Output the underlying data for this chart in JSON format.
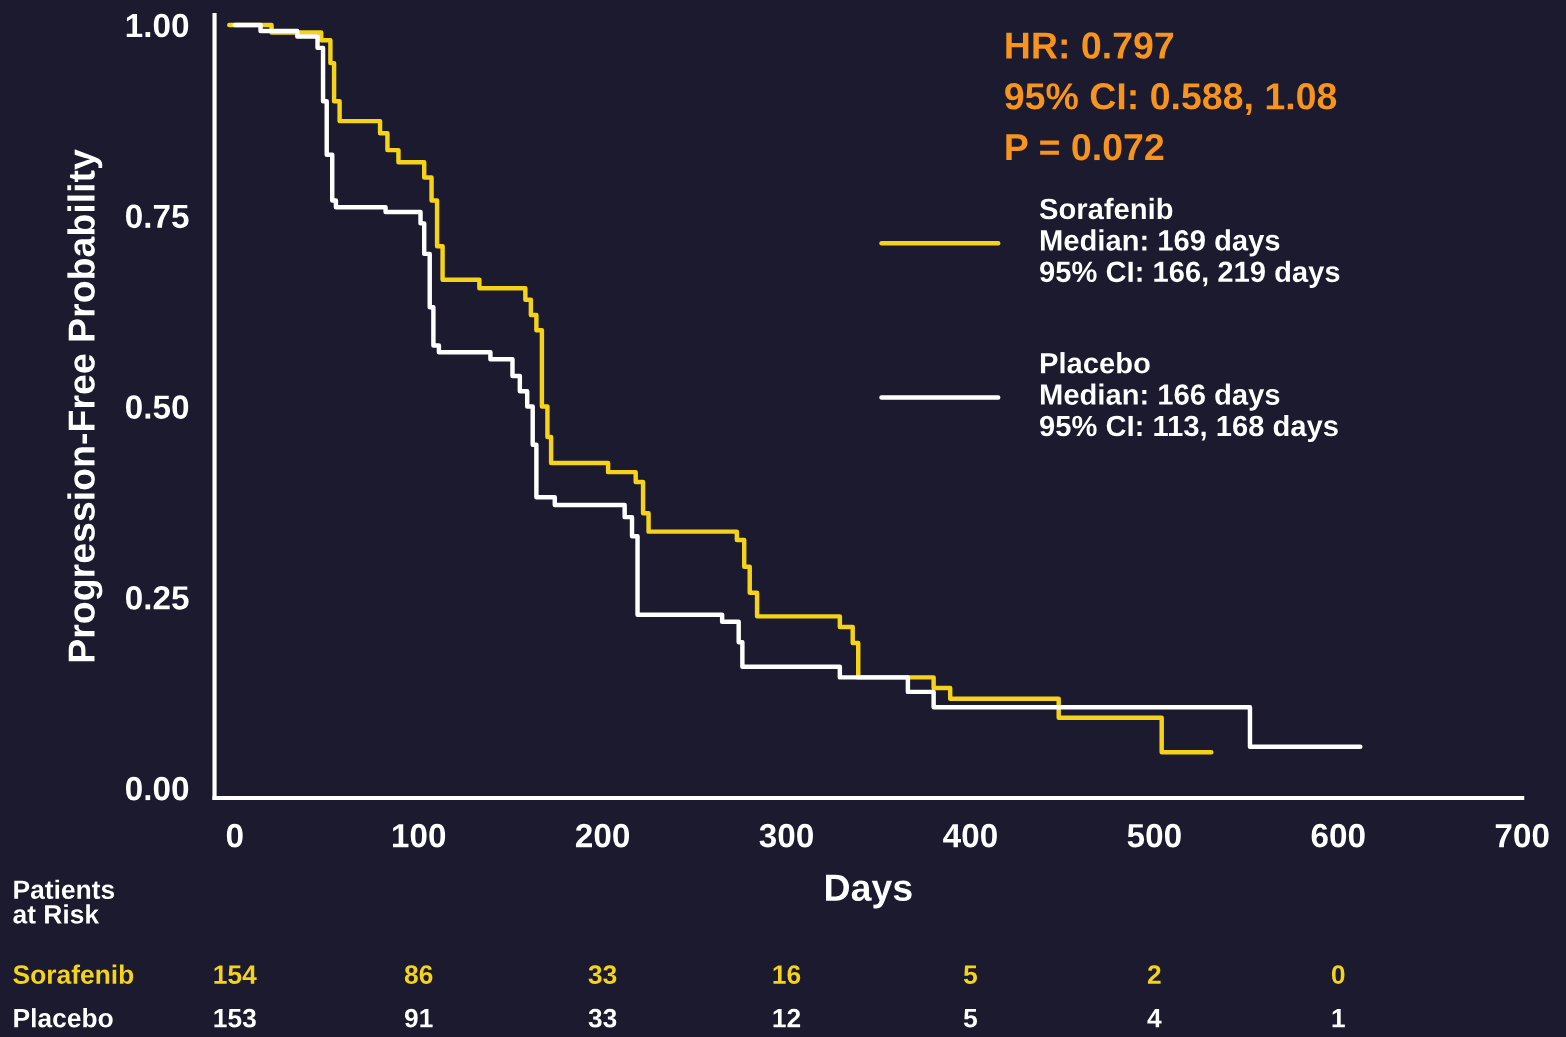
{
  "chart_data": {
    "type": "step",
    "xlabel": "Days",
    "ylabel": "Progression-Free Probability",
    "xlim": [
      -11,
      700
    ],
    "ylim": [
      -0.013,
      1.013
    ],
    "xticks": [
      0,
      100,
      200,
      300,
      400,
      500,
      600,
      700
    ],
    "yticks": [
      {
        "value": 0,
        "label": "0.00"
      },
      {
        "value": 0.25,
        "label": "0.25"
      },
      {
        "value": 0.5,
        "label": "0.50"
      },
      {
        "value": 0.75,
        "label": "0.75"
      },
      {
        "value": 1,
        "label": "1.00"
      }
    ],
    "legend": "top right",
    "grid": false,
    "marker": "none",
    "line_style": "solid",
    "series": [
      {
        "name": "Sorafenib\nMedian: 169 days\n95% CI: 166, 219 days",
        "color": "#f5d31a",
        "x": [
          -3,
          20,
          47,
          52,
          54,
          57,
          79,
          83,
          89,
          103,
          107,
          110,
          113,
          133,
          158,
          161,
          164,
          167,
          170,
          172,
          203,
          218,
          222,
          225,
          273,
          277,
          280,
          284,
          329,
          336,
          339,
          380,
          389,
          448,
          504,
          531
        ],
        "values": [
          1.0,
          0.99,
          0.98,
          0.95,
          0.9,
          0.874,
          0.858,
          0.836,
          0.82,
          0.8,
          0.77,
          0.71,
          0.666,
          0.655,
          0.64,
          0.62,
          0.6,
          0.5,
          0.46,
          0.426,
          0.414,
          0.401,
          0.36,
          0.336,
          0.325,
          0.29,
          0.256,
          0.225,
          0.211,
          0.19,
          0.145,
          0.131,
          0.117,
          0.092,
          0.047,
          0.047
        ]
      },
      {
        "name": "Placebo\nMedian: 166 days\n95% CI: 113, 168 days",
        "color": "#ffffff",
        "x": [
          0,
          14,
          34,
          45,
          48,
          50,
          53,
          55,
          82,
          101,
          103,
          106,
          108,
          111,
          139,
          151,
          155,
          159,
          162,
          164,
          174,
          212,
          216,
          219,
          265,
          274,
          276,
          329,
          366,
          380,
          552,
          612
        ],
        "values": [
          1.0,
          0.992,
          0.985,
          0.97,
          0.9,
          0.83,
          0.77,
          0.761,
          0.755,
          0.74,
          0.7,
          0.63,
          0.58,
          0.571,
          0.562,
          0.54,
          0.52,
          0.5,
          0.45,
          0.381,
          0.371,
          0.355,
          0.33,
          0.227,
          0.218,
          0.191,
          0.159,
          0.145,
          0.126,
          0.106,
          0.054,
          0.054
        ]
      }
    ],
    "annotations": [
      "HR: 0.797",
      "95% CI: 0.588, 1.08",
      "P = 0.072",
      "Patients\nat Risk",
      "Sorafenib",
      "Placebo",
      "154",
      "86",
      "33",
      "16",
      "5",
      "2",
      "0",
      "153",
      "91",
      "33",
      "12",
      "5",
      "4",
      "1"
    ]
  }
}
